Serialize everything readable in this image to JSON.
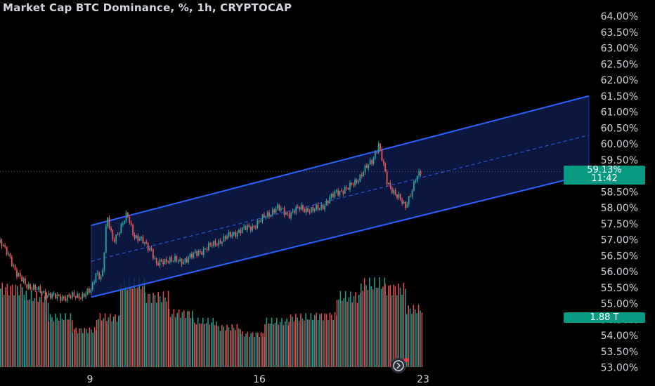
{
  "header": {
    "title": "Market Cap BTC Dominance, %, 1h, CRYPTOCAP"
  },
  "price_badge": {
    "value": "59.13%",
    "countdown": "11:42"
  },
  "volume_badge": {
    "value": "1.88 T"
  },
  "colors": {
    "background": "#000000",
    "up": "#26a69a",
    "down": "#ef5350",
    "channel_line": "#2962ff",
    "channel_fill": "#0d1b4a",
    "badge": "#089981",
    "axis_text": "#d1d4dc"
  },
  "chart_data": {
    "type": "candlestick",
    "title": "Market Cap BTC Dominance, %, 1h, CRYPTOCAP",
    "y_ticks": [
      "64.00%",
      "63.50%",
      "63.00%",
      "62.50%",
      "62.00%",
      "61.50%",
      "61.00%",
      "60.50%",
      "60.00%",
      "59.50%",
      "58.50%",
      "58.00%",
      "57.50%",
      "57.00%",
      "56.50%",
      "56.00%",
      "55.50%",
      "55.00%",
      "54.50%",
      "54.00%",
      "53.50%",
      "53.00%"
    ],
    "ylim": [
      53.0,
      64.0
    ],
    "x_ticks": [
      "9",
      "16",
      "23"
    ],
    "last_price": 59.13,
    "price_path": [
      {
        "t": 0,
        "v": 56.9
      },
      {
        "t": 0.4,
        "v": 56.5
      },
      {
        "t": 0.7,
        "v": 55.9
      },
      {
        "t": 1.1,
        "v": 55.6
      },
      {
        "t": 1.6,
        "v": 55.4
      },
      {
        "t": 2.3,
        "v": 55.2
      },
      {
        "t": 2.8,
        "v": 55.2
      },
      {
        "t": 3.4,
        "v": 55.25
      },
      {
        "t": 3.8,
        "v": 55.4
      },
      {
        "t": 4.0,
        "v": 56.0
      },
      {
        "t": 4.25,
        "v": 55.8
      },
      {
        "t": 4.45,
        "v": 57.7
      },
      {
        "t": 4.7,
        "v": 57.0
      },
      {
        "t": 5.0,
        "v": 57.3
      },
      {
        "t": 5.3,
        "v": 57.8
      },
      {
        "t": 5.6,
        "v": 57.1
      },
      {
        "t": 6.0,
        "v": 56.9
      },
      {
        "t": 6.3,
        "v": 56.7
      },
      {
        "t": 6.5,
        "v": 56.2
      },
      {
        "t": 7.0,
        "v": 56.4
      },
      {
        "t": 7.5,
        "v": 56.3
      },
      {
        "t": 8.0,
        "v": 56.5
      },
      {
        "t": 8.5,
        "v": 56.7
      },
      {
        "t": 9.0,
        "v": 56.9
      },
      {
        "t": 9.5,
        "v": 57.1
      },
      {
        "t": 10.0,
        "v": 57.3
      },
      {
        "t": 10.5,
        "v": 57.4
      },
      {
        "t": 11.0,
        "v": 57.7
      },
      {
        "t": 11.5,
        "v": 58.0
      },
      {
        "t": 12.0,
        "v": 57.8
      },
      {
        "t": 12.5,
        "v": 58.0
      },
      {
        "t": 13.0,
        "v": 57.9
      },
      {
        "t": 13.5,
        "v": 58.1
      },
      {
        "t": 14.0,
        "v": 58.5
      },
      {
        "t": 14.5,
        "v": 58.6
      },
      {
        "t": 15.0,
        "v": 59.0
      },
      {
        "t": 15.3,
        "v": 59.3
      },
      {
        "t": 15.5,
        "v": 59.5
      },
      {
        "t": 15.75,
        "v": 60.0
      },
      {
        "t": 15.9,
        "v": 59.5
      },
      {
        "t": 16.1,
        "v": 58.8
      },
      {
        "t": 16.4,
        "v": 58.5
      },
      {
        "t": 16.6,
        "v": 58.3
      },
      {
        "t": 16.85,
        "v": 58.0
      },
      {
        "t": 17.1,
        "v": 58.5
      },
      {
        "t": 17.3,
        "v": 58.9
      },
      {
        "t": 17.55,
        "v": 59.13
      }
    ],
    "volume_bars": [
      {
        "t0": 0.0,
        "t1": 1.0,
        "v": 0.95
      },
      {
        "t0": 1.0,
        "t1": 2.0,
        "v": 0.85
      },
      {
        "t0": 2.0,
        "t1": 3.0,
        "v": 0.6
      },
      {
        "t0": 3.0,
        "t1": 4.0,
        "v": 0.45
      },
      {
        "t0": 4.0,
        "t1": 5.0,
        "v": 0.6
      },
      {
        "t0": 5.0,
        "t1": 6.0,
        "v": 1.0
      },
      {
        "t0": 6.0,
        "t1": 7.0,
        "v": 0.85
      },
      {
        "t0": 7.0,
        "t1": 8.0,
        "v": 0.65
      },
      {
        "t0": 8.0,
        "t1": 9.0,
        "v": 0.55
      },
      {
        "t0": 9.0,
        "t1": 10.0,
        "v": 0.48
      },
      {
        "t0": 10.0,
        "t1": 11.0,
        "v": 0.4
      },
      {
        "t0": 11.0,
        "t1": 12.0,
        "v": 0.55
      },
      {
        "t0": 12.0,
        "t1": 13.0,
        "v": 0.6
      },
      {
        "t0": 13.0,
        "t1": 14.0,
        "v": 0.62
      },
      {
        "t0": 14.0,
        "t1": 15.0,
        "v": 0.85
      },
      {
        "t0": 15.0,
        "t1": 16.0,
        "v": 1.0
      },
      {
        "t0": 16.0,
        "t1": 16.9,
        "v": 0.95
      },
      {
        "t0": 16.9,
        "t1": 17.55,
        "v": 0.7
      }
    ],
    "channel": {
      "start_t": 3.8,
      "end_t": 24.5,
      "lower_start": 55.2,
      "lower_end": 59.05,
      "upper_start": 57.45,
      "upper_end": 61.5
    },
    "grid": false,
    "legend": "none"
  }
}
